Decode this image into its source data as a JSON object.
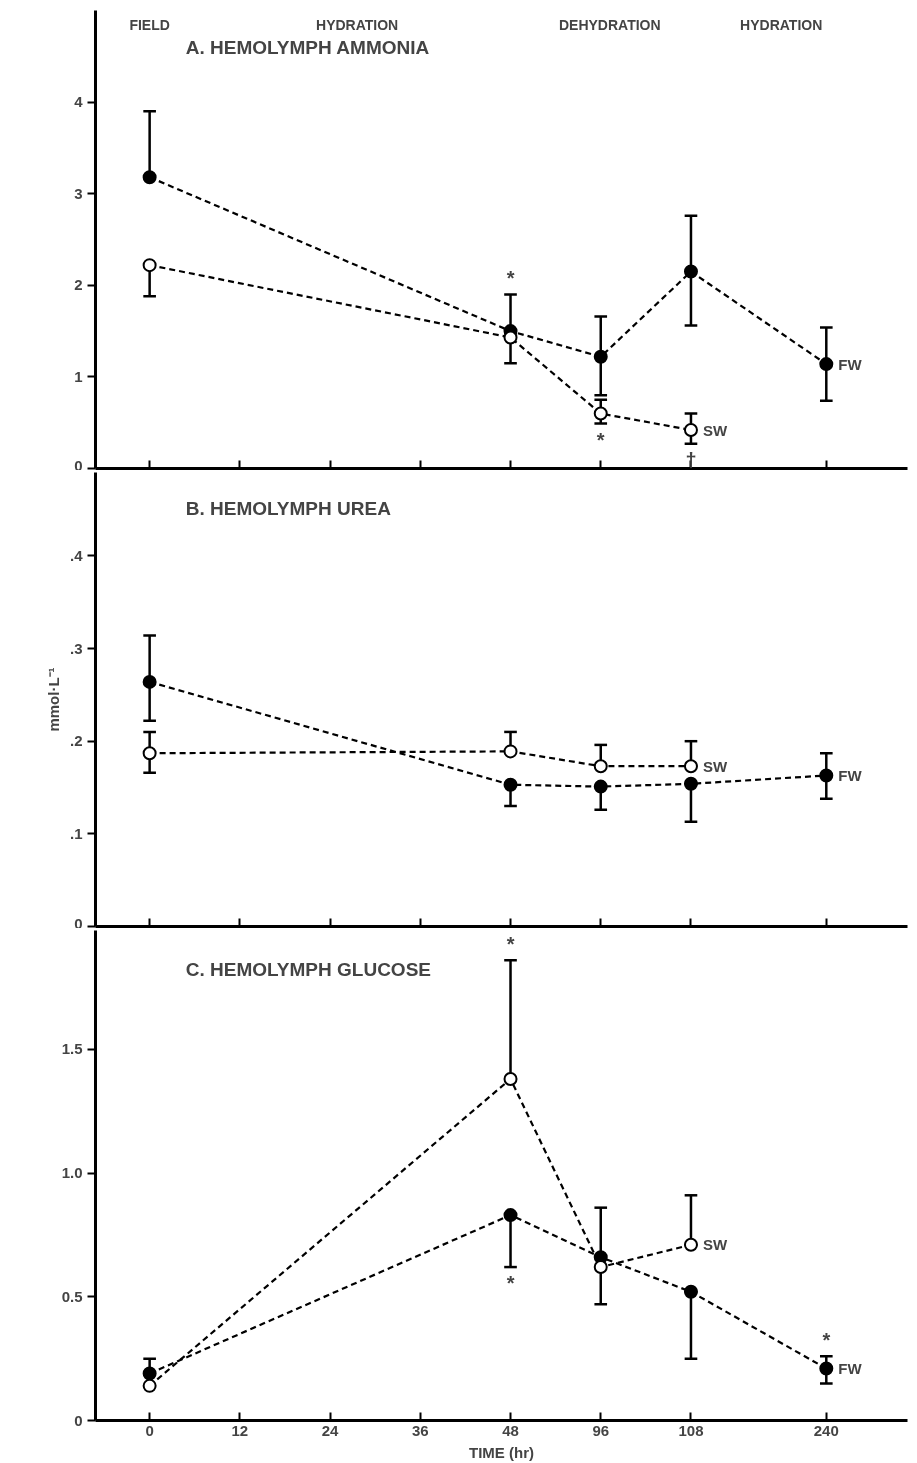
{
  "chart_data": [
    {
      "type": "line",
      "title": "A. HEMOLYMPH AMMONIA",
      "categories": [
        "0",
        "12",
        "24",
        "36",
        "48",
        "96",
        "108",
        "240"
      ],
      "ylim": [
        0,
        5
      ],
      "yticks": [
        0,
        1,
        2,
        3,
        4
      ],
      "tick_labels": "y",
      "grid": false,
      "marker": "circle",
      "line_style": "dashed",
      "series": [
        {
          "name": "FW",
          "color": "#000000",
          "values": [
            3.18,
            null,
            null,
            null,
            1.5,
            1.22,
            2.15,
            1.14
          ],
          "errors": [
            [
              3.18,
              3.9
            ],
            null,
            null,
            null,
            [
              1.5,
              1.9
            ],
            [
              0.8,
              1.66
            ],
            [
              1.56,
              2.76
            ],
            [
              0.74,
              1.54
            ]
          ]
        },
        {
          "name": "SW",
          "color": "#ffffff",
          "values": [
            2.22,
            null,
            null,
            null,
            1.43,
            0.6,
            0.42,
            null
          ],
          "errors": [
            [
              1.88,
              2.22
            ],
            null,
            null,
            null,
            [
              1.15,
              1.43
            ],
            [
              0.49,
              0.75
            ],
            [
              0.27,
              0.6
            ],
            null
          ]
        }
      ],
      "annotations": [
        "FIELD",
        "HYDRATION",
        "DEHYDRATION",
        "HYDRATION",
        {
          "text": "*",
          "x": "48",
          "y": 1.9
        },
        {
          "text": "*",
          "x": "96",
          "y": 0.49
        },
        {
          "text": "†",
          "x": "108",
          "y": 0.27
        }
      ]
    },
    {
      "type": "line",
      "title": "B. HEMOLYMPH UREA",
      "ylabel": "mmol·L⁻¹",
      "categories": [
        "0",
        "12",
        "24",
        "36",
        "48",
        "96",
        "108",
        "240"
      ],
      "ylim": [
        0,
        0.49
      ],
      "yticks": [
        0,
        {
          "value": 0.1,
          "label": ".1"
        },
        {
          "value": 0.2,
          "label": ".2"
        },
        {
          "value": 0.3,
          "label": ".3"
        },
        {
          "value": 0.4,
          "label": ".4"
        }
      ],
      "tick_labels": "y",
      "grid": false,
      "marker": "circle",
      "line_style": "dashed",
      "series": [
        {
          "name": "FW",
          "color": "#000000",
          "values": [
            0.264,
            null,
            null,
            null,
            0.153,
            0.151,
            0.154,
            0.163
          ],
          "errors": [
            [
              0.222,
              0.314
            ],
            null,
            null,
            null,
            [
              0.13,
              0.153
            ],
            [
              0.126,
              0.151
            ],
            [
              0.113,
              0.154
            ],
            [
              0.138,
              0.187
            ]
          ]
        },
        {
          "name": "SW",
          "color": "#ffffff",
          "values": [
            0.187,
            null,
            null,
            null,
            0.189,
            0.173,
            0.173,
            null
          ],
          "errors": [
            [
              0.166,
              0.21
            ],
            null,
            null,
            null,
            [
              0.189,
              0.21
            ],
            [
              0.173,
              0.196
            ],
            [
              0.173,
              0.2
            ],
            null
          ]
        }
      ]
    },
    {
      "type": "line",
      "title": "C. HEMOLYMPH GLUCOSE",
      "xlabel": "TIME (hr)",
      "categories": [
        "0",
        "12",
        "24",
        "36",
        "48",
        "96",
        "108",
        "240"
      ],
      "ylim": [
        0,
        1.98
      ],
      "yticks": [
        0,
        0.5,
        {
          "value": 1,
          "label": "1.0"
        },
        1.5
      ],
      "grid": false,
      "marker": "circle",
      "line_style": "dashed",
      "series": [
        {
          "name": "FW",
          "color": "#000000",
          "values": [
            0.19,
            null,
            null,
            null,
            0.83,
            0.66,
            0.52,
            0.21
          ],
          "errors": [
            [
              0.19,
              0.25
            ],
            null,
            null,
            null,
            [
              0.62,
              0.83
            ],
            [
              0.47,
              0.86
            ],
            [
              0.25,
              0.52
            ],
            [
              0.15,
              0.26
            ]
          ]
        },
        {
          "name": "SW",
          "color": "#ffffff",
          "values": [
            0.14,
            null,
            null,
            null,
            1.38,
            0.62,
            0.71,
            null
          ],
          "errors": [
            null,
            null,
            null,
            null,
            [
              1.38,
              1.86
            ],
            null,
            [
              0.71,
              0.91
            ],
            null
          ]
        }
      ],
      "annotations": [
        {
          "text": "*",
          "x": "48",
          "y": 1.86
        },
        {
          "text": "*",
          "x": "48",
          "y": 0.62
        },
        {
          "text": "*",
          "x": "240",
          "y": 0.26
        }
      ]
    }
  ]
}
